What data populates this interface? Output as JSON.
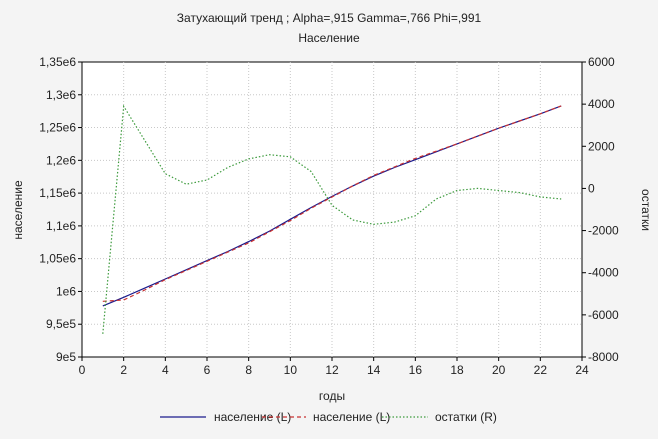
{
  "chart_data": {
    "type": "line",
    "title": "Затухающий тренд ; Alpha=,915 Gamma=,766 Phi=,991",
    "subtitle": "Население",
    "xlabel": "годы",
    "ylabel_left": "население",
    "ylabel_right": "остатки",
    "xlim": [
      0,
      24
    ],
    "ylim_left": [
      900000,
      1350000
    ],
    "ylim_right": [
      -8000,
      6000
    ],
    "x_ticks": [
      "0",
      "2",
      "4",
      "6",
      "8",
      "10",
      "12",
      "14",
      "16",
      "18",
      "20",
      "22",
      "24"
    ],
    "y_left_ticks": [
      "9e5",
      "9,5e5",
      "1e6",
      "1,05e6",
      "1,1e6",
      "1,15e6",
      "1,2e6",
      "1,25e6",
      "1,3e6",
      "1,35e6"
    ],
    "y_right_ticks": [
      "-8000",
      "-6000",
      "-4000",
      "-2000",
      "0",
      "2000",
      "4000",
      "6000"
    ],
    "grid": true,
    "legend": "bottom",
    "series": [
      {
        "name": "население (L)",
        "axis": "left",
        "color": "#1a1a8c",
        "style": "solid",
        "x": [
          1,
          2,
          3,
          4,
          5,
          6,
          7,
          8,
          9,
          10,
          11,
          12,
          13,
          14,
          15,
          16,
          17,
          18,
          19,
          20,
          21,
          22,
          23
        ],
        "values": [
          978000,
          991000,
          1005000,
          1019000,
          1033000,
          1047000,
          1061000,
          1076000,
          1092000,
          1110000,
          1128000,
          1145000,
          1161000,
          1176000,
          1189000,
          1201000,
          1213000,
          1225000,
          1237000,
          1249000,
          1260000,
          1271000,
          1283000
        ]
      },
      {
        "name": "население (L)",
        "axis": "left",
        "color": "#c83232",
        "style": "dashed",
        "x": [
          1,
          2,
          3,
          4,
          5,
          6,
          7,
          8,
          9,
          10,
          11,
          12,
          13,
          14,
          15,
          16,
          17,
          18,
          19,
          20,
          21,
          22,
          23
        ],
        "values": [
          985000,
          987000,
          1002000,
          1018000,
          1032000,
          1046000,
          1060000,
          1074000,
          1091000,
          1108000,
          1127000,
          1144000,
          1161000,
          1177000,
          1190000,
          1203000,
          1214000,
          1225000,
          1237000,
          1249000,
          1260000,
          1271000,
          1283000
        ]
      },
      {
        "name": "остатки (R)",
        "axis": "right",
        "color": "#3c9a3c",
        "style": "dotted",
        "x": [
          1,
          2,
          3,
          4,
          5,
          6,
          7,
          8,
          9,
          10,
          11,
          12,
          13,
          14,
          15,
          16,
          17,
          18,
          19,
          20,
          21,
          22,
          23
        ],
        "values": [
          -6900,
          3900,
          2300,
          700,
          200,
          400,
          1000,
          1400,
          1600,
          1500,
          800,
          -800,
          -1500,
          -1700,
          -1600,
          -1300,
          -500,
          -100,
          0,
          -100,
          -200,
          -400,
          -500
        ]
      }
    ]
  }
}
